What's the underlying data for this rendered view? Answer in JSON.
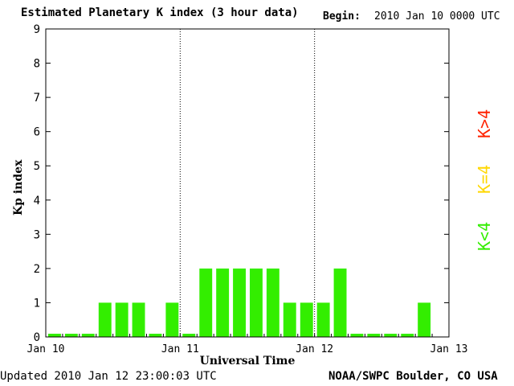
{
  "header": {
    "title": "Estimated Planetary K index (3 hour data)",
    "begin_label": "Begin:",
    "begin_value": "2010 Jan 10 0000 UTC"
  },
  "footer": {
    "updated": "Updated 2010 Jan 12 23:00:03 UTC",
    "source": "NOAA/SWPC Boulder, CO USA"
  },
  "legend": [
    {
      "label": "K>4",
      "color": "#ff2200"
    },
    {
      "label": "K=4",
      "color": "#ffd700"
    },
    {
      "label": "K<4",
      "color": "#33ee00"
    }
  ],
  "chart_data": {
    "type": "bar",
    "title": "Estimated Planetary K index (3 hour data)",
    "xlabel": "Universal Time",
    "ylabel": "Kp index",
    "ylim": [
      0,
      9
    ],
    "yticks": [
      "0",
      "1",
      "2",
      "3",
      "4",
      "5",
      "6",
      "7",
      "8",
      "9"
    ],
    "xticks": [
      "Jan 10",
      "Jan 11",
      "Jan 12",
      "Jan 13"
    ],
    "interval_hours": 3,
    "values": [
      0,
      0,
      0,
      1,
      1,
      1,
      0,
      1,
      0,
      2,
      2,
      2,
      2,
      2,
      1,
      1,
      1,
      2,
      0,
      0,
      0,
      0,
      1
    ],
    "bar_color": "#33ee00"
  }
}
